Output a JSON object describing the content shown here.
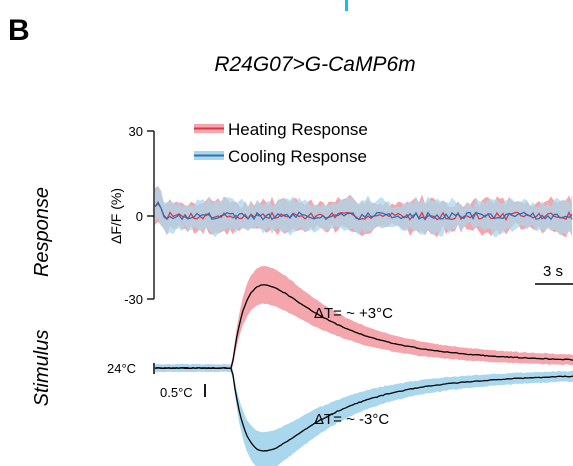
{
  "panel_letter": "B",
  "chart_data": {
    "type": "line",
    "title": "R24G07>G-CaMP6m",
    "row_labels": {
      "response": "Response",
      "stimulus": "Stimulus"
    },
    "response_axis": {
      "ylabel": "ΔF/F (%)",
      "ticks": [
        "30",
        "0",
        "-30"
      ],
      "ylim": [
        -30,
        30
      ]
    },
    "legend": {
      "position": "top-left",
      "entries": [
        "Heating Response",
        "Cooling Response"
      ]
    },
    "scale_bars": {
      "time": "3 s",
      "temperature": "0.5°C"
    },
    "stimulus_baseline_label": "24°C",
    "annotations": {
      "heating": "ΔT= ~ +3°C",
      "cooling": "ΔT= ~ -3°C"
    },
    "colors": {
      "heating_shade": "#f4a6ac",
      "heating_line": "#d63a4a",
      "cooling_shade": "#a9d8ee",
      "cooling_line": "#2f6fb5",
      "stimulus_line": "#000000",
      "accent": "#00c8e6"
    },
    "series": [
      {
        "name": "Heating Response",
        "mean_dff_percent": 0,
        "sem_percent": 5
      },
      {
        "name": "Cooling Response",
        "mean_dff_percent": 0,
        "sem_percent": 5
      }
    ],
    "stimulus_series": [
      {
        "name": "Heating Response",
        "delta_t_c": 3
      },
      {
        "name": "Cooling Response",
        "delta_t_c": -3
      }
    ]
  }
}
